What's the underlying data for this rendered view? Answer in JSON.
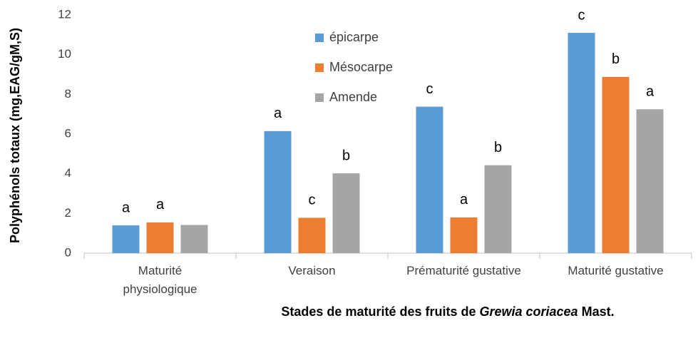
{
  "chart_data": {
    "type": "bar",
    "ylabel": "Polyphénols totaux (mg,EAG/gM,S)",
    "xlabel": [
      "Stades de maturité des fruits de ",
      "Grewia coriacea",
      " Mast."
    ],
    "categories": [
      "Maturité\nphysiologique",
      "Veraison",
      "Prématurité gustative",
      "Maturité gustative"
    ],
    "series": [
      {
        "name": "épicarpe",
        "color": "#5b9bd5",
        "values": [
          1.4,
          6.15,
          7.38,
          11.1
        ],
        "letters": [
          "a",
          "a",
          "c",
          "c"
        ]
      },
      {
        "name": "Mésocarpe",
        "color": "#ed7d31",
        "values": [
          1.55,
          1.78,
          1.8,
          8.88
        ],
        "letters": [
          "a",
          "c",
          "a",
          "b"
        ]
      },
      {
        "name": "Amende",
        "color": "#a5a5a5",
        "values": [
          1.42,
          4.02,
          4.43,
          7.25
        ],
        "letters": [
          null,
          "b",
          "b",
          "a"
        ]
      }
    ],
    "ylim": [
      0,
      12
    ],
    "yticks": [
      0,
      2,
      4,
      6,
      8,
      10,
      12
    ],
    "grid": false,
    "legend": "top"
  }
}
